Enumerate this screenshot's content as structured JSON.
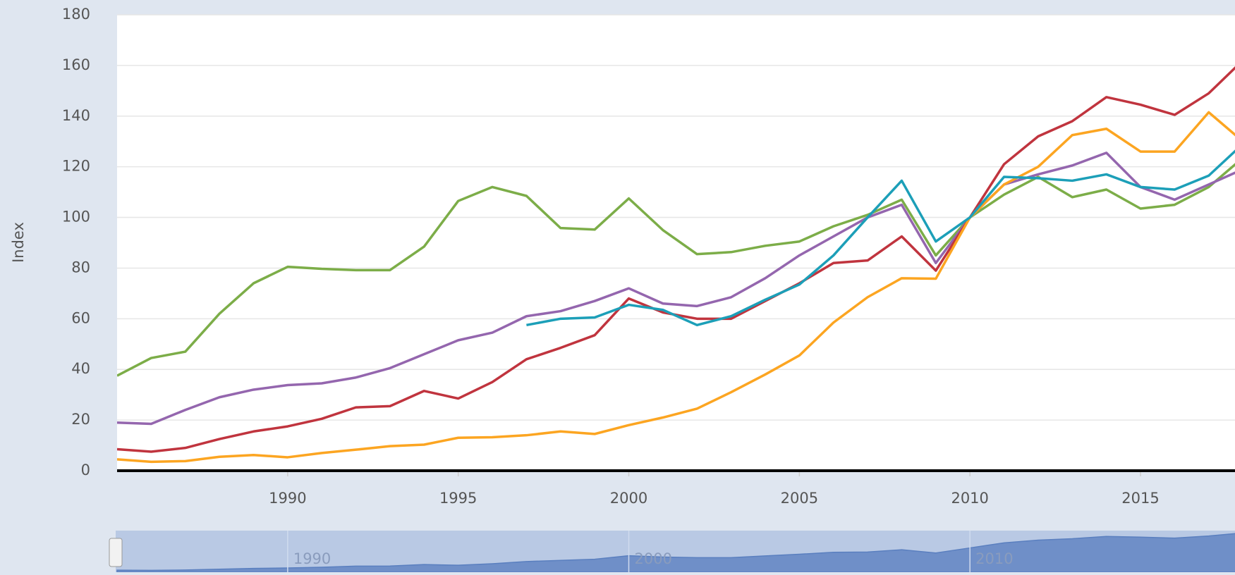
{
  "chart_data": {
    "type": "line",
    "y_axis_label": "Index",
    "x": [
      1985,
      1986,
      1987,
      1988,
      1989,
      1990,
      1991,
      1992,
      1993,
      1994,
      1995,
      1996,
      1997,
      1998,
      1999,
      2000,
      2001,
      2002,
      2003,
      2004,
      2005,
      2006,
      2007,
      2008,
      2009,
      2010,
      2011,
      2012,
      2013,
      2014,
      2015,
      2016,
      2017,
      2018
    ],
    "series": [
      {
        "color": "#7cad48",
        "values": [
          37.5,
          44.5,
          47,
          62,
          74,
          80.5,
          79.7,
          79.2,
          79.2,
          88.5,
          106.5,
          112,
          108.5,
          95.8,
          95.2,
          107.5,
          95,
          85.5,
          86.3,
          88.8,
          90.5,
          96.5,
          101,
          107,
          85,
          100,
          109,
          116,
          108,
          111,
          103.5,
          105,
          112,
          123.5
        ]
      },
      {
        "color": "#9466ae",
        "values": [
          19,
          18.5,
          24,
          29,
          32,
          33.8,
          34.5,
          36.8,
          40.5,
          46,
          51.5,
          54.5,
          61,
          63,
          67,
          72,
          66,
          65,
          68.5,
          76,
          85,
          92.5,
          100,
          105,
          82,
          100,
          113,
          117,
          120.5,
          125.5,
          112,
          107,
          113,
          119
        ]
      },
      {
        "color": "#c0343e",
        "values": [
          8.5,
          7.5,
          9,
          12.5,
          15.5,
          17.5,
          20.5,
          25,
          25.5,
          31.5,
          28.5,
          35,
          44,
          48.5,
          53.5,
          68,
          62.5,
          60,
          60,
          67,
          74,
          82,
          83,
          92.5,
          79,
          100,
          121,
          132,
          138,
          147.5,
          144.5,
          140.5,
          149,
          162
        ]
      },
      {
        "color": "#fca521",
        "values": [
          4.5,
          3.5,
          3.8,
          5.5,
          6.2,
          5.3,
          7,
          8.3,
          9.7,
          10.3,
          13,
          13.2,
          14,
          15.5,
          14.5,
          18,
          21,
          24.5,
          31,
          38,
          45.5,
          58.5,
          68.5,
          76,
          75.8,
          100,
          113,
          120,
          132.5,
          135,
          126,
          126,
          141.5,
          130
        ]
      },
      {
        "color": "#1c9fb8",
        "values": [
          null,
          null,
          null,
          null,
          null,
          null,
          null,
          null,
          null,
          null,
          null,
          null,
          57.5,
          60,
          60.5,
          65.5,
          63.5,
          57.5,
          61,
          67.5,
          73.5,
          85,
          100,
          114.5,
          90.5,
          100,
          116,
          115.5,
          114.5,
          117,
          112,
          111,
          116.5,
          129
        ]
      }
    ],
    "xlim": [
      1985,
      2017.77
    ],
    "xticks": [
      1990,
      1995,
      2000,
      2005,
      2010,
      2015
    ],
    "ylim": [
      0,
      180
    ],
    "yticks": [
      0,
      20,
      40,
      60,
      80,
      100,
      120,
      140,
      160,
      180
    ],
    "grid": true,
    "navigator": {
      "xticks": [
        1990,
        2000,
        2010
      ]
    }
  }
}
